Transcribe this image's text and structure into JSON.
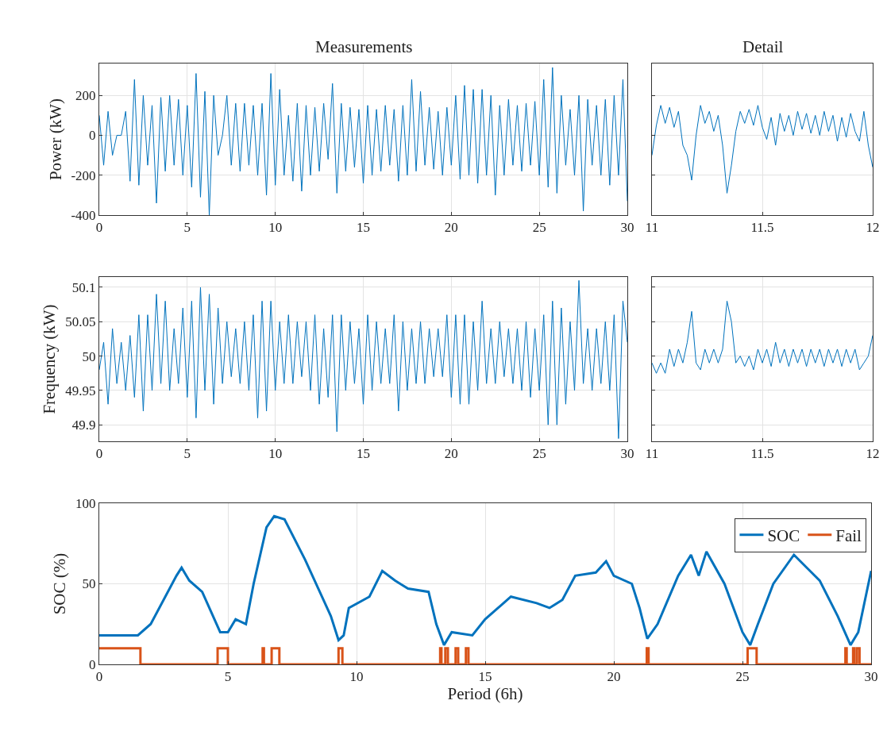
{
  "chart_data": [
    {
      "type": "line",
      "title": "Measurements",
      "ylabel": "Power (kW)",
      "x": [
        0,
        0.25,
        0.5,
        0.75,
        1,
        1.25,
        1.5,
        1.75,
        2,
        2.25,
        2.5,
        2.75,
        3,
        3.25,
        3.5,
        3.75,
        4,
        4.25,
        4.5,
        4.75,
        5,
        5.25,
        5.5,
        5.75,
        6,
        6.25,
        6.5,
        6.75,
        7,
        7.25,
        7.5,
        7.75,
        8,
        8.25,
        8.5,
        8.75,
        9,
        9.25,
        9.5,
        9.75,
        10,
        10.25,
        10.5,
        10.75,
        11,
        11.25,
        11.5,
        11.75,
        12,
        12.25,
        12.5,
        12.75,
        13,
        13.25,
        13.5,
        13.75,
        14,
        14.25,
        14.5,
        14.75,
        15,
        15.25,
        15.5,
        15.75,
        16,
        16.25,
        16.5,
        16.75,
        17,
        17.25,
        17.5,
        17.75,
        18,
        18.25,
        18.5,
        18.75,
        19,
        19.25,
        19.5,
        19.75,
        20,
        20.25,
        20.5,
        20.75,
        21,
        21.25,
        21.5,
        21.75,
        22,
        22.25,
        22.5,
        22.75,
        23,
        23.25,
        23.5,
        23.75,
        24,
        24.25,
        24.5,
        24.75,
        25,
        25.25,
        25.5,
        25.75,
        26,
        26.25,
        26.5,
        26.75,
        27,
        27.25,
        27.5,
        27.75,
        28,
        28.25,
        28.5,
        28.75,
        29,
        29.25,
        29.5,
        29.75,
        30
      ],
      "series": [
        {
          "color": "#0072bd",
          "values": [
            100,
            -150,
            120,
            -100,
            0,
            0,
            120,
            -230,
            280,
            -250,
            200,
            -150,
            150,
            -340,
            190,
            -180,
            200,
            -150,
            180,
            -200,
            150,
            -260,
            310,
            -310,
            220,
            -400,
            200,
            -100,
            0,
            200,
            -150,
            160,
            -180,
            160,
            -150,
            150,
            -200,
            160,
            -300,
            310,
            -250,
            230,
            -200,
            100,
            -230,
            160,
            -280,
            150,
            -200,
            140,
            -180,
            160,
            -120,
            260,
            -290,
            160,
            -180,
            140,
            -160,
            130,
            -240,
            150,
            -200,
            130,
            -180,
            150,
            -150,
            130,
            -230,
            150,
            -200,
            280,
            -180,
            220,
            -150,
            140,
            -170,
            120,
            -200,
            140,
            -150,
            200,
            -220,
            250,
            -200,
            230,
            -240,
            230,
            -200,
            200,
            -300,
            150,
            -200,
            180,
            -150,
            150,
            -180,
            160,
            -150,
            170,
            -200,
            280,
            -260,
            340,
            -290,
            200,
            -150,
            130,
            -200,
            200,
            -380,
            180,
            -150,
            150,
            -200,
            180,
            -250,
            200,
            -200,
            280,
            -330
          ]
        }
      ],
      "xlim": [
        0,
        30
      ],
      "xticks": [
        0,
        5,
        10,
        15,
        20,
        25,
        30
      ],
      "ylim": [
        -400,
        360
      ],
      "yticks": [
        -400,
        -200,
        0,
        200
      ],
      "grid": true
    },
    {
      "type": "line",
      "title": "Detail",
      "x": [
        11,
        11.02,
        11.04,
        11.06,
        11.08,
        11.1,
        11.12,
        11.14,
        11.16,
        11.18,
        11.2,
        11.22,
        11.24,
        11.26,
        11.28,
        11.3,
        11.32,
        11.34,
        11.36,
        11.38,
        11.4,
        11.42,
        11.44,
        11.46,
        11.48,
        11.5,
        11.52,
        11.54,
        11.56,
        11.58,
        11.6,
        11.62,
        11.64,
        11.66,
        11.68,
        11.7,
        11.72,
        11.74,
        11.76,
        11.78,
        11.8,
        11.82,
        11.84,
        11.86,
        11.88,
        11.9,
        11.92,
        11.94,
        11.96,
        11.98,
        12
      ],
      "series": [
        {
          "color": "#0072bd",
          "values": [
            -100,
            50,
            150,
            60,
            140,
            40,
            120,
            -50,
            -100,
            -225,
            0,
            150,
            60,
            120,
            20,
            100,
            -50,
            -290,
            -150,
            20,
            120,
            60,
            130,
            50,
            150,
            40,
            -20,
            90,
            -50,
            110,
            20,
            100,
            0,
            120,
            30,
            110,
            10,
            100,
            0,
            120,
            20,
            100,
            -30,
            90,
            -10,
            110,
            20,
            -30,
            120,
            -50,
            -160
          ]
        }
      ],
      "xlim": [
        11,
        12
      ],
      "xticks": [
        11,
        11.5,
        12
      ],
      "ylim": [
        -400,
        360
      ],
      "yticks": [
        -400,
        -200,
        0,
        200
      ],
      "grid": true,
      "tick_labels": "x"
    },
    {
      "type": "line",
      "ylabel": "Frequency (kW)",
      "x": [
        0,
        0.25,
        0.5,
        0.75,
        1,
        1.25,
        1.5,
        1.75,
        2,
        2.25,
        2.5,
        2.75,
        3,
        3.25,
        3.5,
        3.75,
        4,
        4.25,
        4.5,
        4.75,
        5,
        5.25,
        5.5,
        5.75,
        6,
        6.25,
        6.5,
        6.75,
        7,
        7.25,
        7.5,
        7.75,
        8,
        8.25,
        8.5,
        8.75,
        9,
        9.25,
        9.5,
        9.75,
        10,
        10.25,
        10.5,
        10.75,
        11,
        11.25,
        11.5,
        11.75,
        12,
        12.25,
        12.5,
        12.75,
        13,
        13.25,
        13.5,
        13.75,
        14,
        14.25,
        14.5,
        14.75,
        15,
        15.25,
        15.5,
        15.75,
        16,
        16.25,
        16.5,
        16.75,
        17,
        17.25,
        17.5,
        17.75,
        18,
        18.25,
        18.5,
        18.75,
        19,
        19.25,
        19.5,
        19.75,
        20,
        20.25,
        20.5,
        20.75,
        21,
        21.25,
        21.5,
        21.75,
        22,
        22.25,
        22.5,
        22.75,
        23,
        23.25,
        23.5,
        23.75,
        24,
        24.25,
        24.5,
        24.75,
        25,
        25.25,
        25.5,
        25.75,
        26,
        26.25,
        26.5,
        26.75,
        27,
        27.25,
        27.5,
        27.75,
        28,
        28.25,
        28.5,
        28.75,
        29,
        29.25,
        29.5,
        29.75,
        30
      ],
      "series": [
        {
          "color": "#0072bd",
          "values": [
            49.98,
            50.02,
            49.93,
            50.04,
            49.96,
            50.02,
            49.95,
            50.03,
            49.94,
            50.06,
            49.92,
            50.06,
            49.95,
            50.09,
            49.96,
            50.08,
            49.95,
            50.04,
            49.96,
            50.07,
            49.94,
            50.08,
            49.91,
            50.1,
            49.95,
            50.09,
            49.93,
            50.07,
            49.96,
            50.05,
            49.97,
            50.04,
            49.96,
            50.05,
            49.95,
            50.06,
            49.91,
            50.08,
            49.92,
            50.08,
            49.95,
            50.05,
            49.96,
            50.06,
            49.96,
            50.05,
            49.97,
            50.05,
            49.95,
            50.06,
            49.93,
            50.04,
            49.94,
            50.06,
            49.89,
            50.06,
            49.95,
            50.05,
            49.96,
            50.04,
            49.93,
            50.06,
            49.95,
            50.05,
            49.96,
            50.04,
            49.96,
            50.06,
            49.92,
            50.05,
            49.95,
            50.04,
            49.96,
            50.05,
            49.96,
            50.04,
            49.97,
            50.04,
            49.97,
            50.06,
            49.94,
            50.06,
            49.93,
            50.06,
            49.93,
            50.05,
            49.95,
            50.08,
            49.96,
            50.04,
            49.96,
            50.05,
            49.97,
            50.04,
            49.96,
            50.04,
            49.95,
            50.05,
            49.94,
            50.04,
            49.95,
            50.06,
            49.9,
            50.08,
            49.9,
            50.07,
            49.93,
            50.05,
            49.95,
            50.11,
            49.96,
            50.04,
            49.95,
            50.04,
            49.96,
            50.05,
            49.95,
            50.06,
            49.88,
            50.08,
            50.02
          ]
        }
      ],
      "xlim": [
        0,
        30
      ],
      "xticks": [
        0,
        5,
        10,
        15,
        20,
        25,
        30
      ],
      "ylim": [
        49.876,
        50.115
      ],
      "yticks": [
        49.9,
        49.95,
        50,
        50.05,
        50.1
      ],
      "grid": true
    },
    {
      "type": "line",
      "x": [
        11,
        11.02,
        11.04,
        11.06,
        11.08,
        11.1,
        11.12,
        11.14,
        11.16,
        11.18,
        11.2,
        11.22,
        11.24,
        11.26,
        11.28,
        11.3,
        11.32,
        11.34,
        11.36,
        11.38,
        11.4,
        11.42,
        11.44,
        11.46,
        11.48,
        11.5,
        11.52,
        11.54,
        11.56,
        11.58,
        11.6,
        11.62,
        11.64,
        11.66,
        11.68,
        11.7,
        11.72,
        11.74,
        11.76,
        11.78,
        11.8,
        11.82,
        11.84,
        11.86,
        11.88,
        11.9,
        11.92,
        11.94,
        11.96,
        11.98,
        12
      ],
      "series": [
        {
          "color": "#0072bd",
          "values": [
            49.99,
            49.975,
            49.99,
            49.975,
            50.01,
            49.985,
            50.01,
            49.99,
            50.02,
            50.065,
            49.99,
            49.98,
            50.01,
            49.99,
            50.01,
            49.99,
            50.01,
            50.08,
            50.05,
            49.99,
            50.0,
            49.985,
            50.0,
            49.98,
            50.01,
            49.99,
            50.01,
            49.985,
            50.02,
            49.99,
            50.01,
            49.985,
            50.01,
            49.99,
            50.01,
            49.985,
            50.01,
            49.99,
            50.01,
            49.985,
            50.01,
            49.99,
            50.01,
            49.985,
            50.01,
            49.99,
            50.01,
            49.98,
            49.99,
            50.0,
            50.03
          ]
        }
      ],
      "xlim": [
        11,
        12
      ],
      "xticks": [
        11,
        11.5,
        12
      ],
      "ylim": [
        49.876,
        50.115
      ],
      "yticks": [
        49.9,
        49.95,
        50,
        50.05,
        50.1
      ],
      "grid": true,
      "tick_labels": "x"
    },
    {
      "type": "line",
      "xlabel": "Period (6h)",
      "ylabel": "SOC (%)",
      "legend": "top right",
      "series": [
        {
          "name": "SOC",
          "color": "#0072bd",
          "x": [
            0,
            1.5,
            2,
            3,
            3.2,
            3.5,
            4,
            4.7,
            5,
            5.3,
            5.7,
            6,
            6.5,
            6.8,
            7.2,
            8,
            9,
            9.3,
            9.5,
            9.7,
            10.5,
            11,
            11.5,
            12,
            12.8,
            13.1,
            13.4,
            13.7,
            14.5,
            15,
            15.5,
            16,
            17,
            17.5,
            18,
            18.5,
            19.3,
            19.7,
            20,
            20.7,
            21,
            21.3,
            21.7,
            22.5,
            23,
            23.3,
            23.6,
            24.3,
            25,
            25.3,
            25.6,
            26.2,
            27,
            27.5,
            28,
            28.7,
            29.2,
            29.5,
            30
          ],
          "values": [
            18,
            18,
            25,
            55,
            60,
            52,
            45,
            20,
            20,
            28,
            25,
            50,
            85,
            92,
            90,
            65,
            30,
            15,
            18,
            35,
            42,
            58,
            52,
            47,
            45,
            25,
            12,
            20,
            18,
            28,
            35,
            42,
            38,
            35,
            40,
            55,
            57,
            64,
            55,
            50,
            35,
            16,
            25,
            55,
            68,
            55,
            70,
            50,
            20,
            12,
            25,
            50,
            68,
            60,
            52,
            30,
            12,
            20,
            58
          ]
        },
        {
          "name": "Fail",
          "type": "step",
          "color": "#d95319",
          "x": [
            0,
            1.6,
            4.6,
            5.0,
            6.35,
            6.4,
            6.7,
            7.0,
            9.3,
            9.45,
            13.25,
            13.3,
            13.45,
            13.55,
            13.85,
            13.95,
            14.25,
            14.35,
            21.28,
            21.35,
            25.2,
            25.55,
            29.0,
            29.05,
            29.3,
            29.35,
            29.45,
            29.55,
            30
          ],
          "values": [
            10,
            0,
            10,
            0,
            10,
            0,
            10,
            0,
            10,
            0,
            10,
            0,
            10,
            0,
            10,
            0,
            10,
            0,
            10,
            0,
            10,
            0,
            10,
            0,
            10,
            0,
            10,
            0,
            0
          ]
        }
      ],
      "xlim": [
        0,
        30
      ],
      "xticks": [
        0,
        5,
        10,
        15,
        20,
        25,
        30
      ],
      "ylim": [
        0,
        100
      ],
      "yticks": [
        0,
        50,
        100
      ],
      "grid": true
    }
  ]
}
